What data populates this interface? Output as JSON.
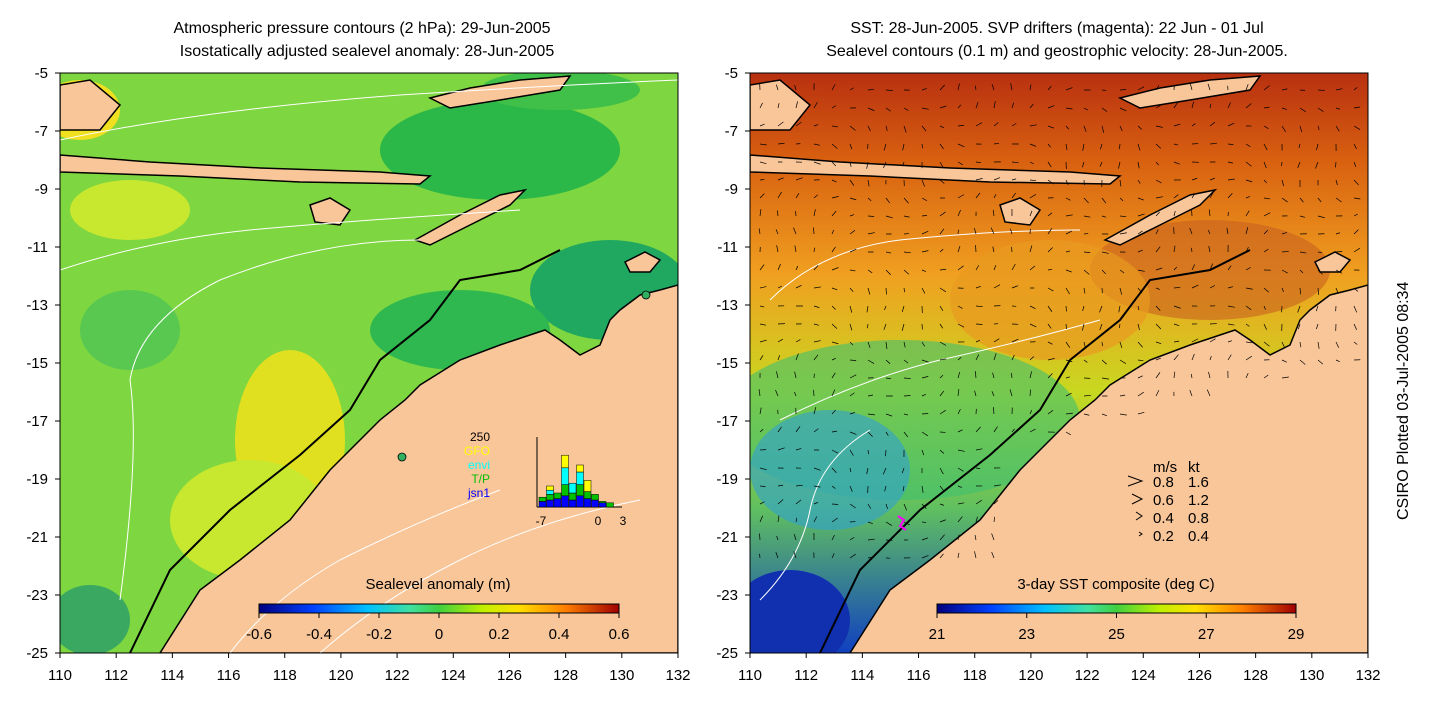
{
  "left_panel": {
    "title_line1": "Atmospheric pressure contours (2 hPa): 29-Jun-2005",
    "title_line2": "Isostatically adjusted sealevel anomaly: 28-Jun-2005",
    "colorbar_label": "Sealevel anomaly (m)",
    "colorbar_ticks": [
      "-0.6",
      "-0.4",
      "-0.2",
      "0",
      "0.2",
      "0.4",
      "0.6"
    ],
    "inset": {
      "ymax_label": "250",
      "legend": [
        {
          "label": "GFO",
          "color": "#ffff00"
        },
        {
          "label": "envi",
          "color": "#00ffff"
        },
        {
          "label": "T/P",
          "color": "#00c000"
        },
        {
          "label": "jsn1",
          "color": "#0000ff"
        }
      ],
      "x_ticks": [
        "-7",
        "0",
        "3"
      ],
      "bars": [
        {
          "jsn1": 20,
          "tp": 15,
          "envi": 0,
          "gfo": 0
        },
        {
          "jsn1": 25,
          "tp": 20,
          "envi": 15,
          "gfo": 15
        },
        {
          "jsn1": 30,
          "tp": 20,
          "envi": 0,
          "gfo": 0
        },
        {
          "jsn1": 40,
          "tp": 40,
          "envi": 60,
          "gfo": 45
        },
        {
          "jsn1": 25,
          "tp": 25,
          "envi": 35,
          "gfo": 0
        },
        {
          "jsn1": 40,
          "tp": 40,
          "envi": 45,
          "gfo": 25
        },
        {
          "jsn1": 30,
          "tp": 25,
          "envi": 0,
          "gfo": 40
        },
        {
          "jsn1": 25,
          "tp": 20,
          "envi": 0,
          "gfo": 0
        },
        {
          "jsn1": 15,
          "tp": 5,
          "envi": 0,
          "gfo": 0
        },
        {
          "jsn1": 0,
          "tp": 15,
          "envi": 0,
          "gfo": 0
        }
      ]
    }
  },
  "right_panel": {
    "title_line1": "SST: 28-Jun-2005. SVP drifters (magenta): 22 Jun - 01 Jul",
    "title_line2": "Sealevel contours (0.1 m) and geostrophic velocity: 28-Jun-2005.",
    "colorbar_label": "3-day SST composite (deg C)",
    "colorbar_ticks": [
      "21",
      "23",
      "25",
      "27",
      "29"
    ],
    "speed_legend": {
      "header_ms": "m/s",
      "header_kt": "kt",
      "rows": [
        {
          "ms": "0.8",
          "kt": "1.6"
        },
        {
          "ms": "0.6",
          "kt": "1.2"
        },
        {
          "ms": "0.4",
          "kt": "0.8"
        },
        {
          "ms": "0.2",
          "kt": "0.4"
        }
      ]
    }
  },
  "axes": {
    "lat_ticks": [
      "-5",
      "-7",
      "-9",
      "-11",
      "-13",
      "-15",
      "-17",
      "-19",
      "-21",
      "-23",
      "-25"
    ],
    "lon_ticks": [
      "110",
      "112",
      "114",
      "116",
      "118",
      "120",
      "122",
      "124",
      "126",
      "128",
      "130",
      "132"
    ]
  },
  "credit": "CSIRO Plotted 03-Jul-2005 08:34",
  "colors": {
    "land": "#f9c69a",
    "coast": "#000000",
    "ocean_sla": "#7ed640",
    "ocean_sst": "#e8891e"
  }
}
